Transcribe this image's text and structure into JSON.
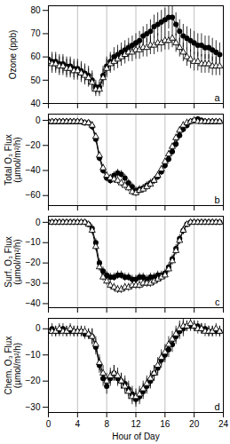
{
  "chart_data": [
    {
      "type": "line",
      "y_label": "Ozone (ppb)",
      "annotation": "a",
      "x": [
        0,
        0.5,
        1,
        1.5,
        2,
        2.5,
        3,
        3.5,
        4,
        4.5,
        5,
        5.5,
        6,
        6.5,
        7,
        7.5,
        8,
        8.5,
        9,
        9.5,
        10,
        10.5,
        11,
        11.5,
        12,
        12.5,
        13,
        13.5,
        14,
        14.5,
        15,
        15.5,
        16,
        16.5,
        17,
        17.5,
        18,
        18.5,
        19,
        19.5,
        20,
        20.5,
        21,
        21.5,
        22,
        22.5,
        23,
        23.5
      ],
      "xlim": [
        0,
        24
      ],
      "xticks": [
        0,
        4,
        8,
        12,
        16,
        20,
        24
      ],
      "ylim": [
        40,
        82
      ],
      "yticks": [
        40,
        50,
        60,
        70,
        80
      ],
      "grid": "x",
      "tick_labels": "y",
      "series": [
        {
          "color": "#000000",
          "marker": "circle",
          "line_style": "solid",
          "values": [
            59,
            58,
            58,
            57,
            57,
            56,
            56,
            55,
            55,
            54,
            53,
            52,
            50,
            47,
            47,
            52,
            56,
            58,
            60,
            61,
            62,
            63,
            64,
            65,
            66,
            67,
            69,
            70,
            71,
            73,
            74,
            75,
            76,
            77,
            77,
            74,
            71,
            69,
            68,
            67,
            66,
            65,
            65,
            64,
            64,
            63,
            62,
            61
          ],
          "error": [
            4,
            4,
            4,
            4,
            4,
            4,
            4,
            4,
            4,
            4,
            4,
            4,
            4,
            3,
            3,
            4,
            4,
            4,
            4,
            4,
            4,
            4,
            4,
            4,
            4,
            4,
            4,
            4,
            5,
            5,
            5,
            5,
            5,
            5,
            5,
            5,
            5,
            5,
            5,
            5,
            5,
            5,
            5,
            5,
            5,
            5,
            5,
            5
          ]
        },
        {
          "color": "#000000",
          "marker": "triangle",
          "line_style": "solid",
          "values": [
            58,
            57,
            57,
            56,
            56,
            55,
            55,
            54,
            54,
            53,
            52,
            51,
            49,
            46,
            46,
            51,
            55,
            57,
            58,
            59,
            60,
            61,
            62,
            62,
            63,
            63,
            64,
            64,
            65,
            65,
            66,
            66,
            67,
            67,
            68,
            66,
            64,
            62,
            60,
            59,
            58,
            58,
            57,
            57,
            57,
            56,
            56,
            56
          ],
          "error": [
            4,
            4,
            4,
            4,
            4,
            4,
            4,
            4,
            4,
            4,
            4,
            4,
            4,
            3,
            3,
            4,
            4,
            4,
            4,
            4,
            4,
            4,
            4,
            4,
            4,
            4,
            4,
            4,
            4,
            4,
            4,
            4,
            4,
            4,
            4,
            4,
            4,
            4,
            4,
            4,
            4,
            4,
            4,
            4,
            4,
            4,
            4,
            4
          ]
        }
      ]
    },
    {
      "type": "line",
      "y_label": "Total O₃ Flux\n(µmol/m²/h)",
      "annotation": "b",
      "x": [
        0,
        0.5,
        1,
        1.5,
        2,
        2.5,
        3,
        3.5,
        4,
        4.5,
        5,
        5.5,
        6,
        6.5,
        7,
        7.5,
        8,
        8.5,
        9,
        9.5,
        10,
        10.5,
        11,
        11.5,
        12,
        12.5,
        13,
        13.5,
        14,
        14.5,
        15,
        15.5,
        16,
        16.5,
        17,
        17.5,
        18,
        18.5,
        19,
        19.5,
        20,
        20.5,
        21,
        21.5,
        22,
        22.5,
        23,
        23.5
      ],
      "xlim": [
        0,
        24
      ],
      "xticks": [
        0,
        4,
        8,
        12,
        16,
        20,
        24
      ],
      "ylim": [
        -68,
        5
      ],
      "yticks": [
        -60,
        -40,
        -20,
        0
      ],
      "grid": "x",
      "tick_labels": "y",
      "series": [
        {
          "color": "#000000",
          "marker": "circle",
          "line_style": "solid",
          "values": [
            -1,
            -1,
            -1,
            -1,
            -1,
            -1,
            -1,
            -1,
            -1,
            -1,
            -2,
            -2,
            -5,
            -15,
            -30,
            -40,
            -46,
            -48,
            -44,
            -42,
            -43,
            -46,
            -50,
            -53,
            -56,
            -55,
            -54,
            -52,
            -50,
            -48,
            -45,
            -41,
            -36,
            -31,
            -25,
            -19,
            -12,
            -7,
            -4,
            -1,
            0,
            1,
            0,
            -1,
            -1,
            -1,
            -1,
            -1
          ],
          "error": [
            2,
            2,
            2,
            2,
            2,
            2,
            2,
            2,
            2,
            2,
            2,
            2,
            3,
            3,
            3,
            3,
            3,
            3,
            3,
            3,
            3,
            3,
            3,
            3,
            3,
            3,
            3,
            3,
            3,
            3,
            3,
            3,
            3,
            3,
            3,
            3,
            3,
            3,
            3,
            2,
            2,
            2,
            2,
            2,
            2,
            2,
            2,
            2
          ]
        },
        {
          "color": "#000000",
          "marker": "triangle",
          "line_style": "solid",
          "values": [
            -1,
            -1,
            -1,
            -1,
            -1,
            -1,
            -1,
            -1,
            -1,
            -1,
            -2,
            -2,
            -4,
            -13,
            -28,
            -38,
            -44,
            -46,
            -47,
            -48,
            -50,
            -52,
            -54,
            -57,
            -58,
            -56,
            -55,
            -53,
            -51,
            -48,
            -44,
            -39,
            -33,
            -27,
            -21,
            -14,
            -8,
            -4,
            -2,
            -1,
            0,
            -1,
            -1,
            -1,
            -1,
            -1,
            -1,
            -1
          ],
          "error": [
            2,
            2,
            2,
            2,
            2,
            2,
            2,
            2,
            2,
            2,
            2,
            2,
            3,
            3,
            3,
            3,
            3,
            3,
            3,
            3,
            3,
            3,
            3,
            3,
            3,
            3,
            3,
            3,
            3,
            3,
            3,
            3,
            3,
            3,
            3,
            3,
            3,
            3,
            3,
            2,
            2,
            2,
            2,
            2,
            2,
            2,
            2,
            2
          ]
        }
      ]
    },
    {
      "type": "line",
      "y_label": "Surf. O₃ Flux\n(µmol/m²/h)",
      "annotation": "c",
      "x": [
        0,
        0.5,
        1,
        1.5,
        2,
        2.5,
        3,
        3.5,
        4,
        4.5,
        5,
        5.5,
        6,
        6.5,
        7,
        7.5,
        8,
        8.5,
        9,
        9.5,
        10,
        10.5,
        11,
        11.5,
        12,
        12.5,
        13,
        13.5,
        14,
        14.5,
        15,
        15.5,
        16,
        16.5,
        17,
        17.5,
        18,
        18.5,
        19,
        19.5,
        20,
        20.5,
        21,
        21.5,
        22,
        22.5,
        23,
        23.5
      ],
      "xlim": [
        0,
        24
      ],
      "xticks": [
        0,
        4,
        8,
        12,
        16,
        20,
        24
      ],
      "ylim": [
        -42,
        3
      ],
      "yticks": [
        -40,
        -30,
        -20,
        -10,
        0
      ],
      "grid": "x",
      "tick_labels": "y",
      "series": [
        {
          "color": "#000000",
          "marker": "circle",
          "line_style": "solid",
          "values": [
            0,
            0,
            0,
            0,
            0,
            0,
            0,
            0,
            0,
            0,
            0,
            -1,
            -3,
            -10,
            -20,
            -24,
            -26,
            -27,
            -27,
            -26,
            -26,
            -27,
            -27,
            -28,
            -28,
            -27,
            -27,
            -28,
            -27,
            -27,
            -26,
            -26,
            -25,
            -22,
            -18,
            -13,
            -8,
            -4,
            -1,
            0,
            0,
            0,
            0,
            0,
            0,
            0,
            0,
            0
          ],
          "error": [
            1,
            1,
            1,
            1,
            1,
            1,
            1,
            1,
            1,
            1,
            1,
            1,
            2,
            2,
            2,
            2,
            2,
            2,
            2,
            2,
            2,
            2,
            2,
            2,
            2,
            2,
            2,
            2,
            2,
            2,
            2,
            2,
            2,
            2,
            2,
            2,
            2,
            2,
            1,
            1,
            1,
            1,
            1,
            1,
            1,
            1,
            1,
            1
          ]
        },
        {
          "color": "#000000",
          "marker": "triangle",
          "line_style": "solid",
          "values": [
            0,
            0,
            0,
            0,
            0,
            0,
            0,
            0,
            0,
            0,
            0,
            -1,
            -4,
            -12,
            -22,
            -27,
            -29,
            -31,
            -32,
            -33,
            -33,
            -32,
            -32,
            -31,
            -31,
            -31,
            -30,
            -30,
            -30,
            -29,
            -28,
            -27,
            -26,
            -23,
            -19,
            -14,
            -9,
            -4,
            -1,
            0,
            0,
            0,
            0,
            0,
            0,
            0,
            0,
            0
          ],
          "error": [
            1,
            1,
            1,
            1,
            1,
            1,
            1,
            1,
            1,
            1,
            1,
            1,
            2,
            2,
            2,
            2,
            2,
            2,
            2,
            2,
            2,
            2,
            2,
            2,
            2,
            2,
            2,
            2,
            2,
            2,
            2,
            2,
            2,
            2,
            2,
            2,
            2,
            2,
            1,
            1,
            1,
            1,
            1,
            1,
            1,
            1,
            1,
            1
          ]
        }
      ]
    },
    {
      "type": "line",
      "y_label": "Chem. O₃ Flux\n(µmol/m²/h)",
      "annotation": "d",
      "x_label": "Hour of Day",
      "x": [
        0,
        0.5,
        1,
        1.5,
        2,
        2.5,
        3,
        3.5,
        4,
        4.5,
        5,
        5.5,
        6,
        6.5,
        7,
        7.5,
        8,
        8.5,
        9,
        9.5,
        10,
        10.5,
        11,
        11.5,
        12,
        12.5,
        13,
        13.5,
        14,
        14.5,
        15,
        15.5,
        16,
        16.5,
        17,
        17.5,
        18,
        18.5,
        19,
        19.5,
        20,
        20.5,
        21,
        21.5,
        22,
        22.5,
        23,
        23.5
      ],
      "xlim": [
        0,
        24
      ],
      "xticks": [
        0,
        4,
        8,
        12,
        16,
        20,
        24
      ],
      "ylim": [
        -32,
        4
      ],
      "yticks": [
        -30,
        -20,
        -10,
        0
      ],
      "grid": "x",
      "series": [
        {
          "color": "#000000",
          "marker": "circle",
          "line_style": "solid",
          "values": [
            -1,
            0,
            -1,
            -1,
            0,
            -1,
            -1,
            -1,
            -1,
            -1,
            -2,
            -2,
            -3,
            -7,
            -14,
            -19,
            -22,
            -19,
            -17,
            -19,
            -20,
            -21,
            -23,
            -25,
            -27,
            -26,
            -24,
            -22,
            -20,
            -17,
            -15,
            -12,
            -10,
            -8,
            -6,
            -3,
            -1,
            0,
            1,
            1,
            1,
            1,
            0,
            0,
            -1,
            -1,
            -1,
            -1
          ],
          "error": [
            2,
            2,
            2,
            2,
            2,
            2,
            2,
            2,
            2,
            2,
            2,
            2,
            3,
            3,
            3,
            3,
            3,
            3,
            3,
            3,
            3,
            3,
            3,
            3,
            3,
            3,
            3,
            3,
            3,
            3,
            3,
            3,
            3,
            3,
            3,
            3,
            3,
            3,
            2,
            2,
            2,
            2,
            2,
            2,
            2,
            2,
            2,
            2
          ]
        },
        {
          "color": "#000000",
          "marker": "triangle",
          "line_style": "solid",
          "values": [
            -1,
            -1,
            -1,
            0,
            -1,
            -1,
            0,
            -1,
            -1,
            -1,
            -1,
            -2,
            -3,
            -6,
            -13,
            -17,
            -20,
            -18,
            -17,
            -18,
            -20,
            -22,
            -24,
            -26,
            -26,
            -25,
            -23,
            -21,
            -19,
            -17,
            -14,
            -11,
            -9,
            -6,
            -4,
            -2,
            0,
            1,
            1,
            2,
            1,
            0,
            0,
            -1,
            -1,
            -1,
            0,
            -1
          ],
          "error": [
            2,
            2,
            2,
            2,
            2,
            2,
            2,
            2,
            2,
            2,
            2,
            2,
            3,
            3,
            3,
            3,
            3,
            3,
            3,
            3,
            3,
            3,
            3,
            3,
            3,
            3,
            3,
            3,
            3,
            3,
            3,
            3,
            3,
            3,
            3,
            3,
            3,
            3,
            2,
            2,
            2,
            2,
            2,
            2,
            2,
            2,
            2,
            2
          ]
        }
      ]
    }
  ]
}
